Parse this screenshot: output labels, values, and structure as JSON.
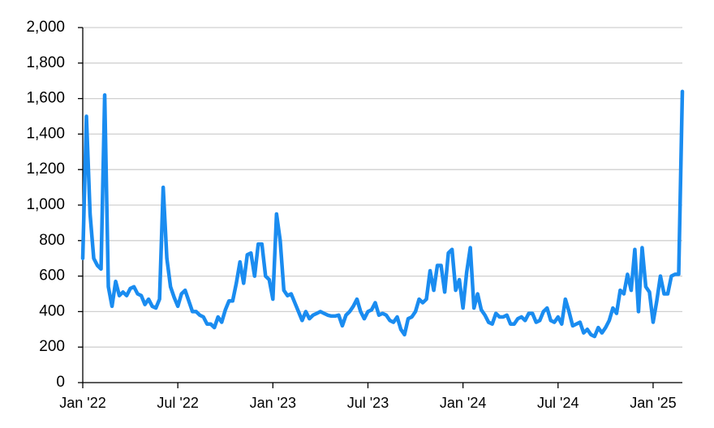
{
  "chart_data": {
    "type": "line",
    "color": "#1a8cf0",
    "grid": true,
    "categories": [
      "Jan '22",
      null,
      null,
      null,
      null,
      null,
      null,
      null,
      null,
      null,
      null,
      null,
      null,
      null,
      null,
      null,
      null,
      null,
      null,
      null,
      null,
      null,
      null,
      null,
      null,
      null,
      "Jul '22",
      null,
      null,
      null,
      null,
      null,
      null,
      null,
      null,
      null,
      null,
      null,
      null,
      null,
      null,
      null,
      null,
      null,
      null,
      null,
      null,
      null,
      null,
      null,
      null,
      null,
      "Jan '23",
      null,
      null,
      null,
      null,
      null,
      null,
      null,
      null,
      null,
      null,
      null,
      null,
      null,
      null,
      null,
      null,
      null,
      null,
      null,
      null,
      null,
      null,
      null,
      null,
      null,
      "Jul '23",
      null,
      null,
      null,
      null,
      null,
      null,
      null,
      null,
      null,
      null,
      null,
      null,
      null,
      null,
      null,
      null,
      null,
      null,
      null,
      null,
      null,
      null,
      null,
      null,
      null,
      "Jan '24",
      null,
      null,
      null,
      null,
      null,
      null,
      null,
      null,
      null,
      null,
      null,
      null,
      null,
      null,
      null,
      null,
      null,
      null,
      null,
      null,
      null,
      null,
      null,
      null,
      null,
      "Jul '24",
      null,
      null,
      null,
      null,
      null,
      null,
      null,
      null,
      null,
      null,
      null,
      null,
      null,
      null,
      null,
      null,
      null,
      null,
      null,
      null,
      null,
      null,
      null,
      null,
      null,
      "Jan '25",
      null,
      null,
      null,
      null,
      null,
      null,
      null,
      null
    ],
    "values": [
      700,
      1500,
      950,
      700,
      660,
      640,
      1620,
      540,
      430,
      570,
      490,
      510,
      490,
      530,
      540,
      500,
      490,
      440,
      470,
      430,
      420,
      470,
      1100,
      700,
      540,
      480,
      430,
      500,
      520,
      460,
      400,
      400,
      380,
      370,
      330,
      330,
      310,
      370,
      340,
      410,
      460,
      460,
      560,
      680,
      560,
      720,
      730,
      600,
      780,
      780,
      600,
      580,
      470,
      950,
      800,
      520,
      490,
      500,
      450,
      400,
      350,
      400,
      360,
      380,
      390,
      400,
      390,
      380,
      375,
      375,
      380,
      320,
      380,
      400,
      430,
      470,
      400,
      360,
      400,
      410,
      450,
      380,
      390,
      380,
      350,
      340,
      370,
      300,
      270,
      360,
      370,
      400,
      470,
      450,
      470,
      630,
      520,
      660,
      660,
      510,
      730,
      750,
      520,
      580,
      420,
      620,
      760,
      420,
      500,
      410,
      380,
      340,
      330,
      390,
      370,
      370,
      380,
      330,
      330,
      360,
      370,
      350,
      390,
      390,
      340,
      350,
      400,
      420,
      350,
      340,
      370,
      330,
      470,
      400,
      320,
      330,
      340,
      280,
      300,
      270,
      260,
      310,
      280,
      310,
      350,
      420,
      390,
      520,
      500,
      610,
      520,
      750,
      400,
      760,
      540,
      510,
      340,
      460,
      600,
      500,
      500,
      600,
      610,
      610,
      1640
    ],
    "ylim": [
      0,
      2000
    ],
    "yticks": [
      0,
      200,
      400,
      600,
      800,
      {
        "value": 1000,
        "label": "1,000"
      },
      {
        "value": 1200,
        "label": "1,200"
      },
      {
        "value": 1400,
        "label": "1,400"
      },
      {
        "value": 1600,
        "label": "1,600"
      },
      {
        "value": 1800,
        "label": "1,800"
      },
      {
        "value": 2000,
        "label": "2,000"
      }
    ]
  }
}
